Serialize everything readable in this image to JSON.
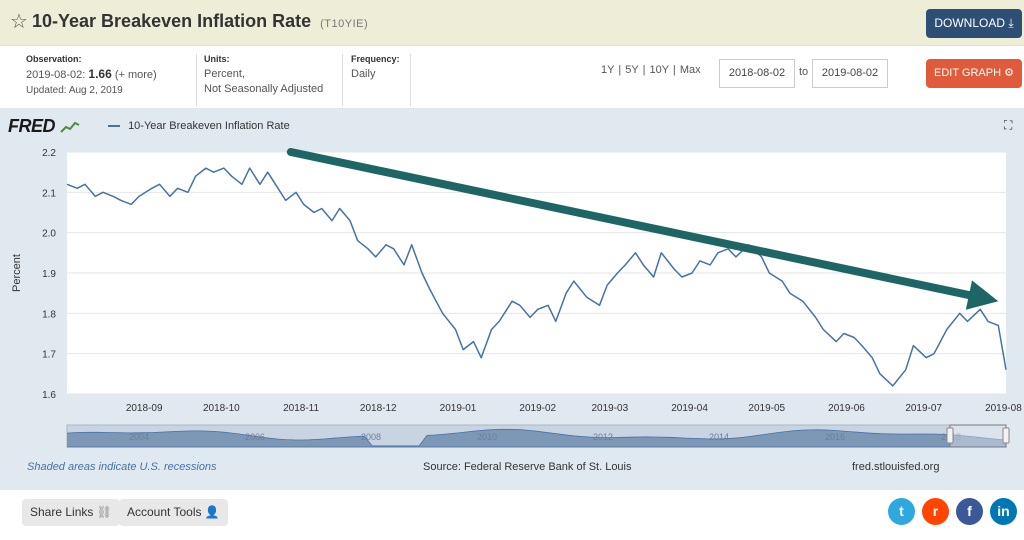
{
  "header": {
    "title": "10-Year Breakeven Inflation Rate",
    "series_id": "(T10YIE)",
    "download_label": "DOWNLOAD"
  },
  "observation": {
    "label": "Observation:",
    "date": "2019-08-02:",
    "value": "1.66",
    "more": "(+ more)",
    "updated": "Updated: Aug 2, 2019"
  },
  "units": {
    "label": "Units:",
    "line1": "Percent,",
    "line2": "Not Seasonally Adjusted"
  },
  "frequency": {
    "label": "Frequency:",
    "value": "Daily"
  },
  "controls": {
    "ranges": [
      "1Y",
      "5Y",
      "10Y",
      "Max"
    ],
    "start_date": "2018-08-02",
    "to_label": "to",
    "end_date": "2019-08-02",
    "edit_label": "EDIT GRAPH"
  },
  "logo_text": "FRED",
  "notes": {
    "recession": "Shaded areas indicate U.S. recessions",
    "source": "Source: Federal Reserve Bank of St. Louis",
    "url": "fred.stlouisfed.org"
  },
  "footer": {
    "share_links": "Share Links",
    "account_tools": "Account Tools",
    "social": [
      {
        "name": "twitter",
        "glyph": "t",
        "color": "#2fa8e0"
      },
      {
        "name": "reddit",
        "glyph": "r",
        "color": "#ff4500"
      },
      {
        "name": "facebook",
        "glyph": "f",
        "color": "#3b5998"
      },
      {
        "name": "linkedin",
        "glyph": "in",
        "color": "#0077b5"
      }
    ]
  },
  "colors": {
    "series": "#4572a7",
    "arrow": "#1e6666",
    "panel": "#e1e9f0"
  },
  "chart_data": {
    "type": "line",
    "legend": "10-Year Breakeven Inflation Rate",
    "ylabel": "Percent",
    "ylim": [
      1.6,
      2.2
    ],
    "yticks": [
      "1.6",
      "1.7",
      "1.8",
      "1.9",
      "2.0",
      "2.1",
      "2.2"
    ],
    "xticks": [
      "2018-09",
      "2018-10",
      "2018-11",
      "2018-12",
      "2019-01",
      "2019-02",
      "2019-03",
      "2019-04",
      "2019-05",
      "2019-06",
      "2019-07",
      "2019-08"
    ],
    "navigator_labels": [
      "2004",
      "2006",
      "2008",
      "2010",
      "2012",
      "2014",
      "2016",
      "2018"
    ],
    "series": [
      {
        "name": "10-Year Breakeven Inflation Rate",
        "x": [
          "2018-08-02",
          "2018-08-06",
          "2018-08-09",
          "2018-08-13",
          "2018-08-16",
          "2018-08-20",
          "2018-08-23",
          "2018-08-27",
          "2018-08-30",
          "2018-09-04",
          "2018-09-07",
          "2018-09-11",
          "2018-09-14",
          "2018-09-18",
          "2018-09-21",
          "2018-09-25",
          "2018-09-28",
          "2018-10-02",
          "2018-10-05",
          "2018-10-09",
          "2018-10-12",
          "2018-10-16",
          "2018-10-19",
          "2018-10-23",
          "2018-10-26",
          "2018-10-30",
          "2018-11-02",
          "2018-11-06",
          "2018-11-09",
          "2018-11-13",
          "2018-11-16",
          "2018-11-20",
          "2018-11-23",
          "2018-11-27",
          "2018-11-30",
          "2018-12-04",
          "2018-12-07",
          "2018-12-11",
          "2018-12-14",
          "2018-12-18",
          "2018-12-21",
          "2018-12-26",
          "2018-12-31",
          "2019-01-03",
          "2019-01-07",
          "2019-01-10",
          "2019-01-14",
          "2019-01-17",
          "2019-01-22",
          "2019-01-25",
          "2019-01-29",
          "2019-02-01",
          "2019-02-05",
          "2019-02-08",
          "2019-02-12",
          "2019-02-15",
          "2019-02-20",
          "2019-02-25",
          "2019-02-28",
          "2019-03-04",
          "2019-03-07",
          "2019-03-11",
          "2019-03-14",
          "2019-03-18",
          "2019-03-21",
          "2019-03-26",
          "2019-03-29",
          "2019-04-02",
          "2019-04-05",
          "2019-04-09",
          "2019-04-12",
          "2019-04-16",
          "2019-04-19",
          "2019-04-24",
          "2019-04-29",
          "2019-05-02",
          "2019-05-07",
          "2019-05-10",
          "2019-05-15",
          "2019-05-20",
          "2019-05-23",
          "2019-05-28",
          "2019-05-31",
          "2019-06-04",
          "2019-06-07",
          "2019-06-11",
          "2019-06-14",
          "2019-06-19",
          "2019-06-24",
          "2019-06-27",
          "2019-07-02",
          "2019-07-05",
          "2019-07-10",
          "2019-07-15",
          "2019-07-18",
          "2019-07-23",
          "2019-07-26",
          "2019-07-30",
          "2019-08-02"
        ],
        "values": [
          2.12,
          2.11,
          2.12,
          2.09,
          2.1,
          2.09,
          2.08,
          2.07,
          2.09,
          2.11,
          2.12,
          2.09,
          2.11,
          2.1,
          2.14,
          2.16,
          2.15,
          2.16,
          2.14,
          2.12,
          2.16,
          2.12,
          2.15,
          2.11,
          2.08,
          2.1,
          2.07,
          2.05,
          2.06,
          2.03,
          2.06,
          2.03,
          1.98,
          1.96,
          1.94,
          1.97,
          1.96,
          1.92,
          1.97,
          1.9,
          1.86,
          1.8,
          1.76,
          1.71,
          1.73,
          1.69,
          1.76,
          1.78,
          1.83,
          1.82,
          1.79,
          1.81,
          1.82,
          1.78,
          1.85,
          1.88,
          1.84,
          1.82,
          1.87,
          1.9,
          1.92,
          1.95,
          1.92,
          1.89,
          1.95,
          1.91,
          1.89,
          1.9,
          1.93,
          1.92,
          1.95,
          1.96,
          1.94,
          1.97,
          1.94,
          1.9,
          1.88,
          1.85,
          1.83,
          1.79,
          1.76,
          1.73,
          1.75,
          1.74,
          1.72,
          1.69,
          1.65,
          1.62,
          1.66,
          1.72,
          1.69,
          1.7,
          1.76,
          1.8,
          1.78,
          1.81,
          1.78,
          1.77,
          1.66
        ]
      }
    ],
    "annotations": [
      {
        "type": "arrow",
        "from": [
          "2018-10-28",
          2.2
        ],
        "to": [
          "2019-07-30",
          1.83
        ],
        "color": "#1e6666"
      }
    ]
  }
}
